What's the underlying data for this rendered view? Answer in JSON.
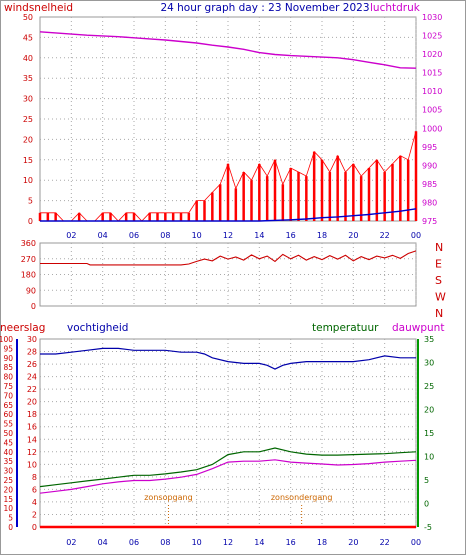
{
  "header": {
    "title": "24 hour graph day : 23 November 2023",
    "left_label": "windsnelheid",
    "right_label": "luchtdruk"
  },
  "colors": {
    "wind_axis": "#cc0000",
    "pressure": "#cc00cc",
    "gust": "#ff0000",
    "wind_avg": "#0000cc",
    "direction": "#cc0000",
    "rain_axis": "#cc0000",
    "humidity": "#0000aa",
    "temperature": "#006600",
    "dewpoint": "#cc00cc",
    "sun_marker": "#cc6600",
    "grid": "#aaaaaa"
  },
  "x_ticks": [
    "02",
    "04",
    "06",
    "08",
    "10",
    "12",
    "14",
    "16",
    "18",
    "20",
    "22",
    "00"
  ],
  "chart_data": [
    {
      "type": "line",
      "name": "wind-pressure",
      "y_left": {
        "label": "windsnelheid",
        "ticks": [
          "0",
          "5",
          "10",
          "15",
          "20",
          "25",
          "30",
          "35",
          "40",
          "45",
          "50"
        ],
        "lim": [
          0,
          50
        ]
      },
      "y_right": {
        "label": "luchtdruk",
        "ticks": [
          "975",
          "980",
          "985",
          "990",
          "995",
          "1000",
          "1005",
          "1010",
          "1015",
          "1020",
          "1025",
          "1030"
        ],
        "lim": [
          975,
          1030
        ]
      },
      "series": [
        {
          "key": "pressure",
          "axis": "right",
          "x": [
            0,
            1,
            2,
            3,
            4,
            5,
            6,
            7,
            8,
            9,
            10,
            11,
            12,
            13,
            14,
            15,
            16,
            17,
            18,
            19,
            20,
            21,
            22,
            23,
            24
          ],
          "y": [
            1026.0,
            1025.7,
            1025.4,
            1025.1,
            1024.9,
            1024.7,
            1024.4,
            1024.1,
            1023.8,
            1023.4,
            1023.0,
            1022.4,
            1021.9,
            1021.3,
            1020.4,
            1019.9,
            1019.6,
            1019.4,
            1019.2,
            1019.0,
            1018.5,
            1017.8,
            1017.1,
            1016.3,
            1016.2
          ]
        },
        {
          "key": "gust",
          "axis": "left",
          "x": [
            0,
            0.5,
            1,
            1.5,
            2,
            2.5,
            3,
            3.5,
            4,
            4.5,
            5,
            5.5,
            6,
            6.5,
            7,
            7.5,
            8,
            8.5,
            9,
            9.5,
            10,
            10.5,
            11,
            11.5,
            12,
            12.5,
            13,
            13.5,
            14,
            14.5,
            15,
            15.5,
            16,
            16.5,
            17,
            17.5,
            18,
            18.5,
            19,
            19.5,
            20,
            20.5,
            21,
            21.5,
            22,
            22.5,
            23,
            23.5,
            24
          ],
          "y": [
            2,
            2,
            2,
            0,
            0,
            2,
            0,
            0,
            2,
            2,
            0,
            2,
            2,
            0,
            2,
            2,
            2,
            2,
            2,
            2,
            5,
            5,
            7,
            9,
            14,
            8,
            12,
            10,
            14,
            11,
            15,
            9,
            13,
            12,
            11,
            17,
            15,
            12,
            16,
            12,
            14,
            11,
            13,
            15,
            12,
            14,
            16,
            15,
            22
          ]
        },
        {
          "key": "wind_avg",
          "axis": "left",
          "x": [
            0,
            2,
            4,
            6,
            8,
            10,
            12,
            14,
            16,
            17,
            18,
            19,
            20,
            21,
            22,
            23,
            24
          ],
          "y": [
            0,
            0,
            0,
            0,
            0,
            0,
            0,
            0,
            0.3,
            0.5,
            0.8,
            1.0,
            1.3,
            1.6,
            2.0,
            2.4,
            3.0
          ]
        }
      ]
    },
    {
      "type": "line",
      "name": "wind-direction",
      "y_left": {
        "ticks": [
          "0",
          "90",
          "180",
          "270",
          "360"
        ],
        "lim": [
          0,
          360
        ]
      },
      "y_right": {
        "ticks": [
          "N",
          "W",
          "S",
          "E",
          "N"
        ]
      },
      "series": [
        {
          "key": "direction",
          "x": [
            0,
            1,
            2,
            3,
            3.2,
            4,
            5,
            6,
            7,
            8,
            9,
            9.5,
            10,
            10.5,
            11,
            11.5,
            12,
            12.5,
            13,
            13.5,
            14,
            14.5,
            15,
            15.5,
            16,
            16.5,
            17,
            17.5,
            18,
            18.5,
            19,
            19.5,
            20,
            20.5,
            21,
            21.5,
            22,
            22.5,
            23,
            23.5,
            24
          ],
          "y": [
            243,
            243,
            243,
            243,
            235,
            235,
            235,
            235,
            235,
            235,
            235,
            240,
            255,
            268,
            258,
            285,
            268,
            280,
            262,
            292,
            270,
            285,
            255,
            295,
            270,
            290,
            262,
            282,
            265,
            288,
            268,
            290,
            258,
            282,
            265,
            285,
            275,
            290,
            272,
            300,
            315
          ]
        }
      ]
    },
    {
      "type": "line",
      "name": "temperature-humidity",
      "y_rain": {
        "label": "neerslag",
        "ticks": [
          "0",
          "5",
          "10",
          "15",
          "20",
          "25",
          "30",
          "35",
          "40",
          "45",
          "50",
          "55",
          "60",
          "65",
          "70",
          "75",
          "80",
          "85",
          "90",
          "95",
          "100"
        ],
        "lim": [
          0,
          100
        ]
      },
      "y_humidity": {
        "label": "vochtigheid",
        "ticks": [
          "0",
          "2",
          "4",
          "6",
          "8",
          "10",
          "12",
          "14",
          "16",
          "18",
          "20",
          "22",
          "24",
          "26",
          "28",
          "30"
        ],
        "lim": [
          0,
          30
        ]
      },
      "y_temp": {
        "label": "temperatuur",
        "ticks": [
          "-5",
          "0",
          "5",
          "10",
          "15",
          "20",
          "25",
          "30",
          "35"
        ],
        "lim": [
          -5,
          35
        ]
      },
      "extra_label": "dauwpunt",
      "annotations": [
        {
          "label": "zonsopgang",
          "x": 8.2
        },
        {
          "label": "zonsondergang",
          "x": 16.7
        }
      ],
      "series": [
        {
          "key": "humidity",
          "axis": "humidity",
          "x": [
            0,
            1,
            2,
            3,
            4,
            5,
            6,
            7,
            8,
            9,
            10,
            10.5,
            11,
            12,
            13,
            14,
            14.5,
            15,
            15.5,
            16,
            17,
            18,
            19,
            20,
            21,
            22,
            23,
            24
          ],
          "y": [
            92,
            92,
            93,
            94,
            95,
            95,
            94,
            94,
            94,
            93,
            93,
            92,
            90,
            88,
            87,
            87,
            86,
            84,
            86,
            87,
            88,
            88,
            88,
            88,
            89,
            91,
            90,
            90
          ]
        },
        {
          "key": "temperature",
          "axis": "temp",
          "x": [
            0,
            1,
            2,
            3,
            4,
            5,
            6,
            7,
            8,
            9,
            10,
            11,
            12,
            13,
            14,
            15,
            16,
            17,
            18,
            19,
            20,
            21,
            22,
            23,
            24
          ],
          "y": [
            3.6,
            4.0,
            4.4,
            4.8,
            5.2,
            5.6,
            6.0,
            6.0,
            6.3,
            6.7,
            7.2,
            8.3,
            10.4,
            11.0,
            11.0,
            11.8,
            11.0,
            10.5,
            10.3,
            10.3,
            10.4,
            10.5,
            10.6,
            10.8,
            11.0
          ]
        },
        {
          "key": "dewpoint",
          "axis": "temp",
          "x": [
            0,
            1,
            2,
            3,
            4,
            5,
            6,
            7,
            8,
            9,
            10,
            11,
            12,
            13,
            14,
            15,
            16,
            17,
            18,
            19,
            20,
            21,
            22,
            23,
            24
          ],
          "y": [
            2.2,
            2.6,
            3.0,
            3.6,
            4.2,
            4.6,
            4.9,
            4.9,
            5.2,
            5.6,
            6.2,
            7.4,
            8.8,
            9.0,
            9.0,
            9.3,
            8.8,
            8.6,
            8.4,
            8.2,
            8.3,
            8.5,
            8.8,
            9.0,
            9.2
          ]
        },
        {
          "key": "rain",
          "axis": "rain",
          "x": [
            0,
            24
          ],
          "y": [
            0,
            0
          ]
        }
      ]
    }
  ]
}
